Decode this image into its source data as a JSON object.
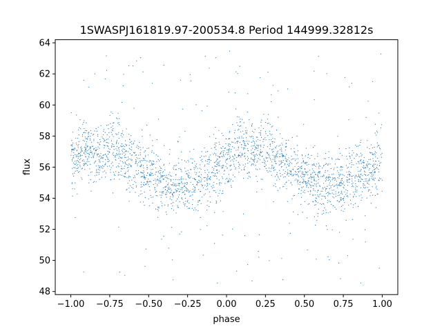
{
  "chart_data": {
    "type": "scatter",
    "title": "1SWASPJ161819.97-200534.8 Period 144999.32812s",
    "xlabel": "phase",
    "ylabel": "flux",
    "xlim": [
      -1.1,
      1.1
    ],
    "ylim": [
      47.8,
      64.2
    ],
    "xticks": [
      -1.0,
      -0.75,
      -0.5,
      -0.25,
      0.0,
      0.25,
      0.5,
      0.75,
      1.0
    ],
    "xtick_labels": [
      "−1.00",
      "−0.75",
      "−0.50",
      "−0.25",
      "0.00",
      "0.25",
      "0.50",
      "0.75",
      "1.00"
    ],
    "yticks": [
      48,
      50,
      52,
      54,
      56,
      58,
      60,
      62,
      64
    ],
    "ytick_labels": [
      "48",
      "50",
      "52",
      "54",
      "56",
      "58",
      "60",
      "62",
      "64"
    ],
    "grid": false,
    "point_color": "#1f77b4",
    "series": [
      {
        "x": [
          -1.0,
          -0.95,
          -0.9,
          -0.85,
          -0.8,
          -0.75,
          -0.7,
          -0.65,
          -0.6,
          -0.55,
          -0.5,
          -0.45,
          -0.4,
          -0.35,
          -0.3,
          -0.25,
          -0.2,
          -0.15,
          -0.1,
          -0.05,
          0.0,
          0.05,
          0.1,
          0.15,
          0.2,
          0.25,
          0.3,
          0.35,
          0.4,
          0.45,
          0.5,
          0.55,
          0.6,
          0.65,
          0.7,
          0.75,
          0.8,
          0.85,
          0.9,
          0.95,
          1.0
        ],
        "y": [
          56.2,
          56.8,
          57.2,
          57.0,
          56.8,
          57.2,
          57.0,
          56.5,
          56.2,
          55.8,
          55.5,
          55.2,
          54.8,
          54.6,
          54.8,
          54.7,
          55.0,
          55.3,
          55.6,
          56.0,
          56.3,
          56.9,
          57.3,
          57.1,
          56.9,
          57.2,
          57.0,
          56.6,
          56.2,
          55.8,
          55.4,
          55.1,
          54.8,
          54.7,
          54.9,
          54.8,
          55.1,
          55.4,
          55.6,
          55.9,
          56.1
        ]
      }
    ]
  }
}
